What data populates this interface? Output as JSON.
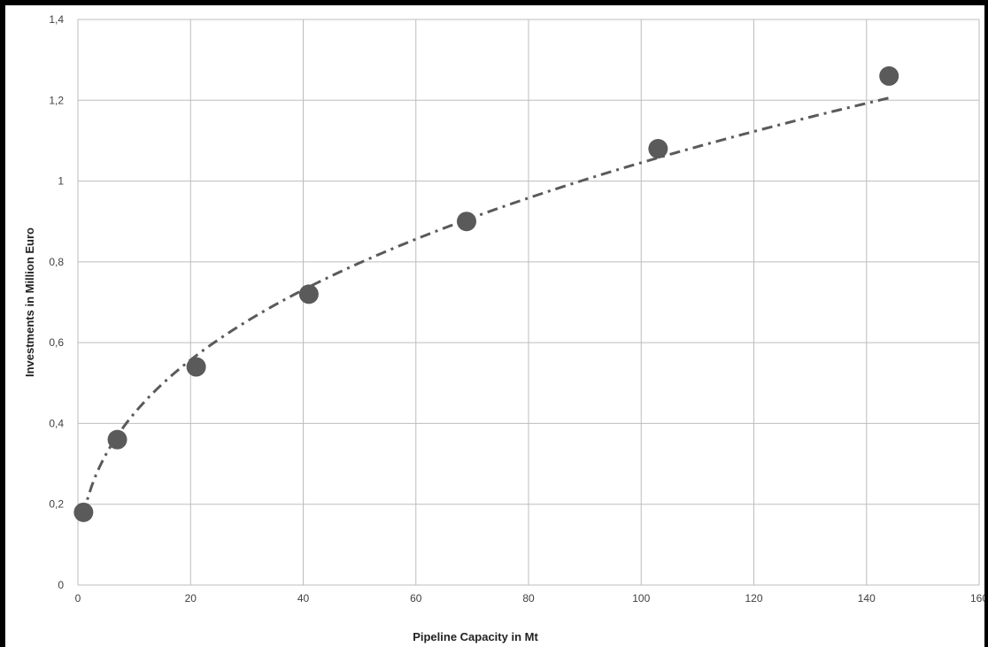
{
  "chart_data": {
    "type": "scatter",
    "title": "",
    "xlabel": "Pipeline Capacity in Mt",
    "ylabel": "Investments in Million Euro",
    "xlim": [
      0,
      160
    ],
    "ylim": [
      0,
      1.4
    ],
    "x_ticks": [
      "0",
      "20",
      "40",
      "60",
      "80",
      "100",
      "120",
      "140",
      "160"
    ],
    "y_ticks": [
      "0",
      "0,2",
      "0,4",
      "0,6",
      "0,8",
      "1",
      "1,2",
      "1,4"
    ],
    "grid": true,
    "legend": "none",
    "marker_color": "#5a5a5a",
    "trendline_color": "#5a5a5a",
    "series": [
      {
        "x": [
          1,
          7,
          21,
          41,
          69,
          103,
          144
        ],
        "y": [
          0.18,
          0.36,
          0.54,
          0.72,
          0.9,
          1.08,
          1.26
        ]
      }
    ],
    "trendline": {
      "type": "power",
      "style": "dash-dot"
    }
  }
}
